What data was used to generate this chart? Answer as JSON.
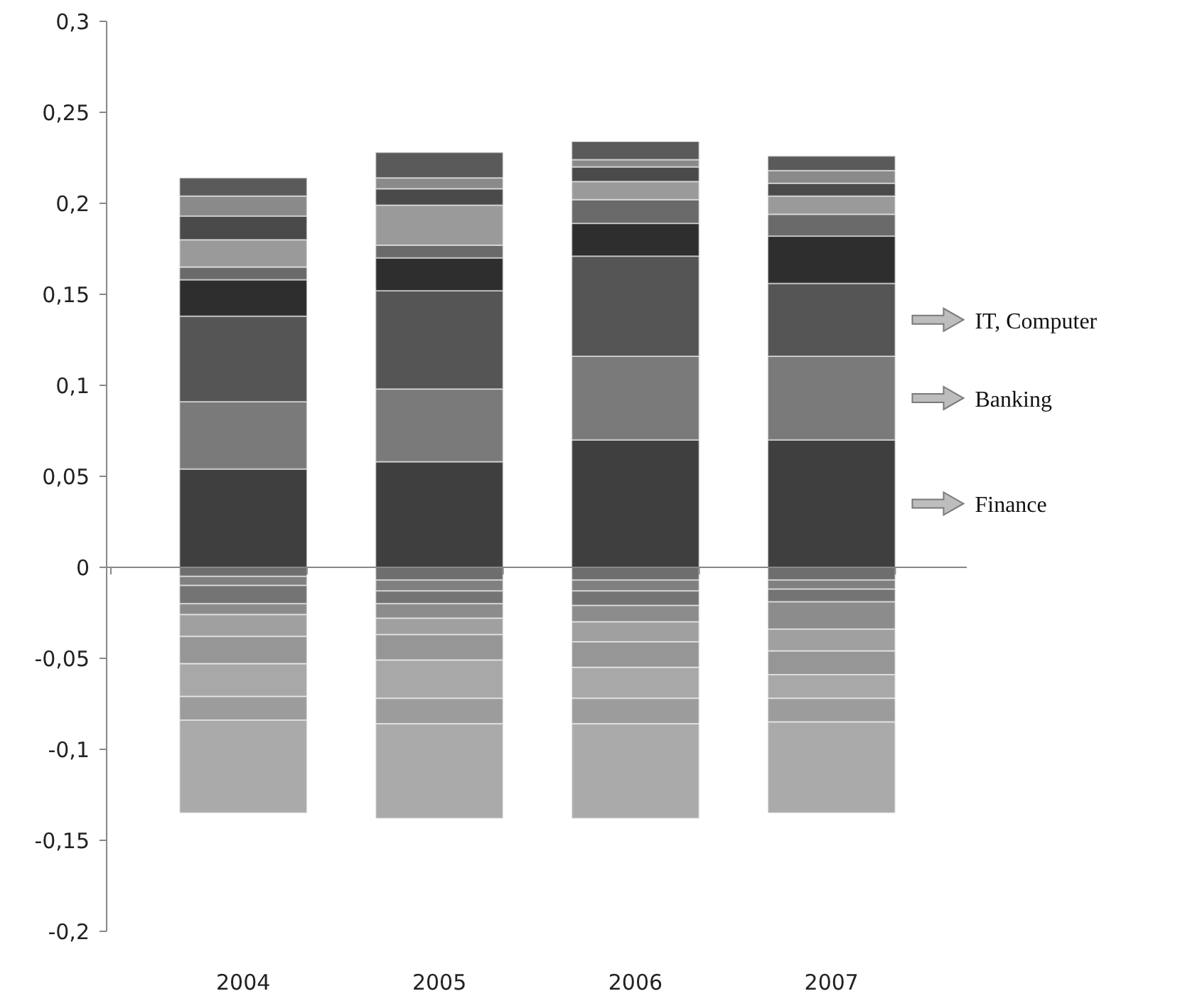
{
  "chart_data": {
    "type": "bar",
    "stacked": true,
    "categories": [
      "2004",
      "2005",
      "2006",
      "2007"
    ],
    "ylim": [
      -0.2,
      0.3
    ],
    "yticks": [
      {
        "value": -0.2,
        "label": "-0,2"
      },
      {
        "value": -0.15,
        "label": "-0,15"
      },
      {
        "value": -0.1,
        "label": "-0,1"
      },
      {
        "value": -0.05,
        "label": "-0,05"
      },
      0,
      {
        "value": 0.05,
        "label": "0,05"
      },
      {
        "value": 0.1,
        "label": "0,1"
      },
      {
        "value": 0.15,
        "label": "0,15"
      },
      {
        "value": 0.2,
        "label": "0,2"
      },
      {
        "value": 0.25,
        "label": "0,25"
      },
      {
        "value": 0.3,
        "label": "0,3"
      }
    ],
    "series": [
      {
        "name": "Finance",
        "color": "#3f3f3f",
        "values": [
          0.054,
          0.058,
          0.07,
          0.07
        ]
      },
      {
        "name": "Banking",
        "color": "#7a7a7a",
        "values": [
          0.037,
          0.04,
          0.046,
          0.046
        ]
      },
      {
        "name": "IT, Computer",
        "color": "#555555",
        "values": [
          0.047,
          0.054,
          0.055,
          0.04
        ]
      },
      {
        "color": "#2e2e2e",
        "values": [
          0.02,
          0.018,
          0.018,
          0.026
        ]
      },
      {
        "color": "#6a6a6a",
        "values": [
          0.007,
          0.007,
          0.013,
          0.012
        ]
      },
      {
        "color": "#9a9a9a",
        "values": [
          0.015,
          0.022,
          0.01,
          0.01
        ]
      },
      {
        "color": "#4a4a4a",
        "values": [
          0.013,
          0.009,
          0.008,
          0.007
        ]
      },
      {
        "color": "#8a8a8a",
        "values": [
          0.011,
          0.006,
          0.004,
          0.007
        ]
      },
      {
        "color": "#5a5a5a",
        "values": [
          0.01,
          0.014,
          0.01,
          0.008
        ]
      },
      {
        "color": "#6e6e6e",
        "values": [
          -0.005,
          -0.007,
          -0.007,
          -0.007
        ]
      },
      {
        "color": "#808080",
        "values": [
          -0.005,
          -0.006,
          -0.006,
          -0.005
        ]
      },
      {
        "color": "#747474",
        "values": [
          -0.01,
          -0.007,
          -0.008,
          -0.007
        ]
      },
      {
        "color": "#8c8c8c",
        "values": [
          -0.006,
          -0.008,
          -0.009,
          -0.015
        ]
      },
      {
        "color": "#a0a0a0",
        "values": [
          -0.012,
          -0.009,
          -0.011,
          -0.012
        ]
      },
      {
        "color": "#969696",
        "values": [
          -0.015,
          -0.014,
          -0.014,
          -0.013
        ]
      },
      {
        "color": "#a8a8a8",
        "values": [
          -0.018,
          -0.021,
          -0.017,
          -0.013
        ]
      },
      {
        "color": "#9c9c9c",
        "values": [
          -0.013,
          -0.014,
          -0.014,
          -0.013
        ]
      },
      {
        "color": "#aaaaaa",
        "values": [
          -0.051,
          -0.052,
          -0.052,
          -0.05
        ]
      }
    ]
  }
}
